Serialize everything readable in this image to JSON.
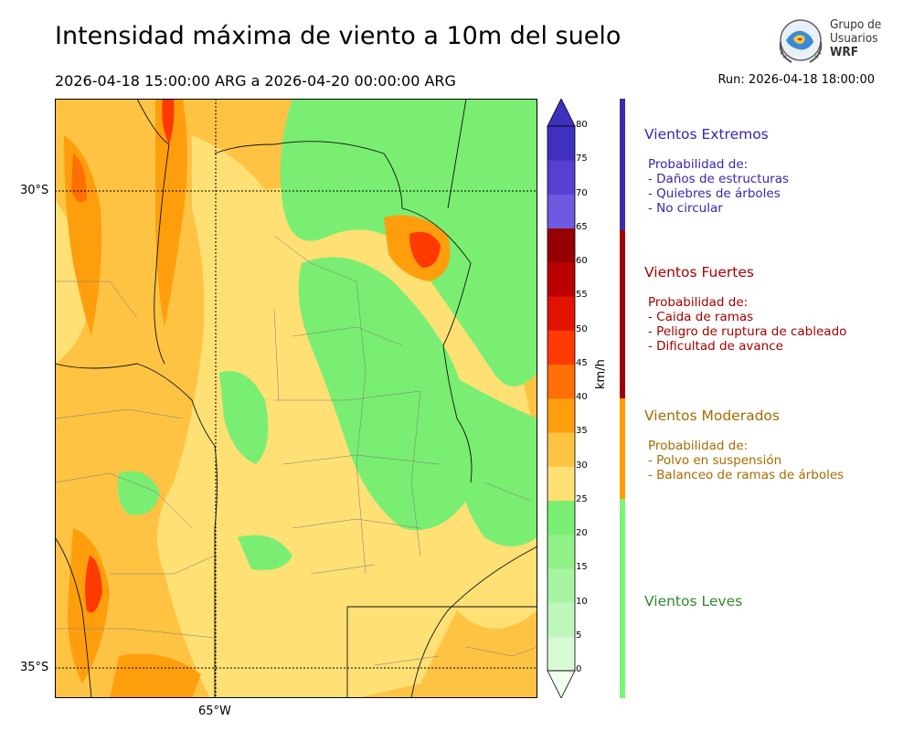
{
  "title": "Intensidad máxima de viento a 10m del suelo",
  "period": "2026-04-18 15:00:00 ARG  a  2026-04-20 00:00:00 ARG",
  "run": "Run: 2026-04-18 18:00:00",
  "logo": {
    "lines": [
      "Grupo de",
      "Usuarios",
      "WRF"
    ]
  },
  "axes": {
    "lat_labels": [
      "30°S",
      "35°S"
    ],
    "lon_labels": [
      "65°W"
    ]
  },
  "colorbar": {
    "unit": "km/h",
    "ticks": [
      "80",
      "75",
      "70",
      "65",
      "60",
      "55",
      "50",
      "45",
      "40",
      "35",
      "30",
      "25",
      "20",
      "15",
      "10",
      "5",
      "0"
    ],
    "colors": [
      "#f0fff0",
      "#d6fbd4",
      "#bef7bb",
      "#a7f4a2",
      "#90f188",
      "#7aee72",
      "#ffe074",
      "#ffc344",
      "#ff9e0d",
      "#ff6f06",
      "#ff3a01",
      "#e01400",
      "#bc0000",
      "#960000",
      "#6e5ae0",
      "#5540d0",
      "#3f30bf"
    ]
  },
  "categories": [
    {
      "title": "Vientos Extremos",
      "color": "#3b25ac",
      "bar_color": "#3a2ca8",
      "sub": [
        "Probabilidad de:",
        "- Daños de estructuras",
        "- Quiebres de árboles",
        "- No circular"
      ]
    },
    {
      "title": "Vientos Fuertes",
      "color": "#a50000",
      "bar_color": "#a00000",
      "sub": [
        "Probabilidad de:",
        "- Caida de ramas",
        "- Peligro de ruptura de cableado",
        "- Dificultad de avance"
      ]
    },
    {
      "title": "Vientos Moderados",
      "color": "#a86a00",
      "bar_color": "#ff9d00",
      "sub": [
        "Probabilidad de:",
        "- Polvo en suspensión",
        "- Balanceo de ramas de árboles"
      ]
    },
    {
      "title": "Vientos Leves",
      "color": "#2e8b2e",
      "bar_color": "#7af575",
      "sub": []
    }
  ]
}
